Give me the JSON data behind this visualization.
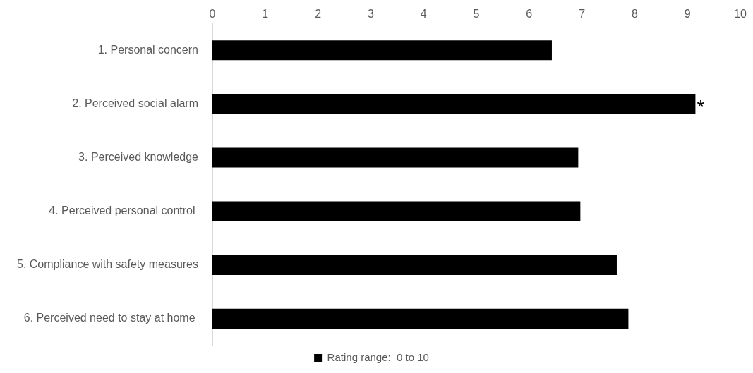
{
  "chart_data": {
    "type": "bar",
    "orientation": "horizontal",
    "categories": [
      "1. Personal concern",
      "2. Perceived social alarm",
      "3. Perceived knowledge",
      "4. Perceived personal control ",
      "5. Compliance with safety measures",
      "6. Perceived need to stay at home "
    ],
    "series": [
      {
        "name": "Rating range:  0 to 10",
        "color": "#000000",
        "values": [
          6.43,
          9.15,
          6.93,
          6.97,
          7.66,
          7.88
        ]
      }
    ],
    "xlim": [
      0,
      10
    ],
    "xticks": [
      0,
      1,
      2,
      3,
      4,
      5,
      6,
      7,
      8,
      9,
      10
    ],
    "grid": false,
    "legend": "bottom",
    "annotations": [
      {
        "text": "*",
        "x": 9.15,
        "y": "2. Perceived social alarm"
      }
    ]
  }
}
